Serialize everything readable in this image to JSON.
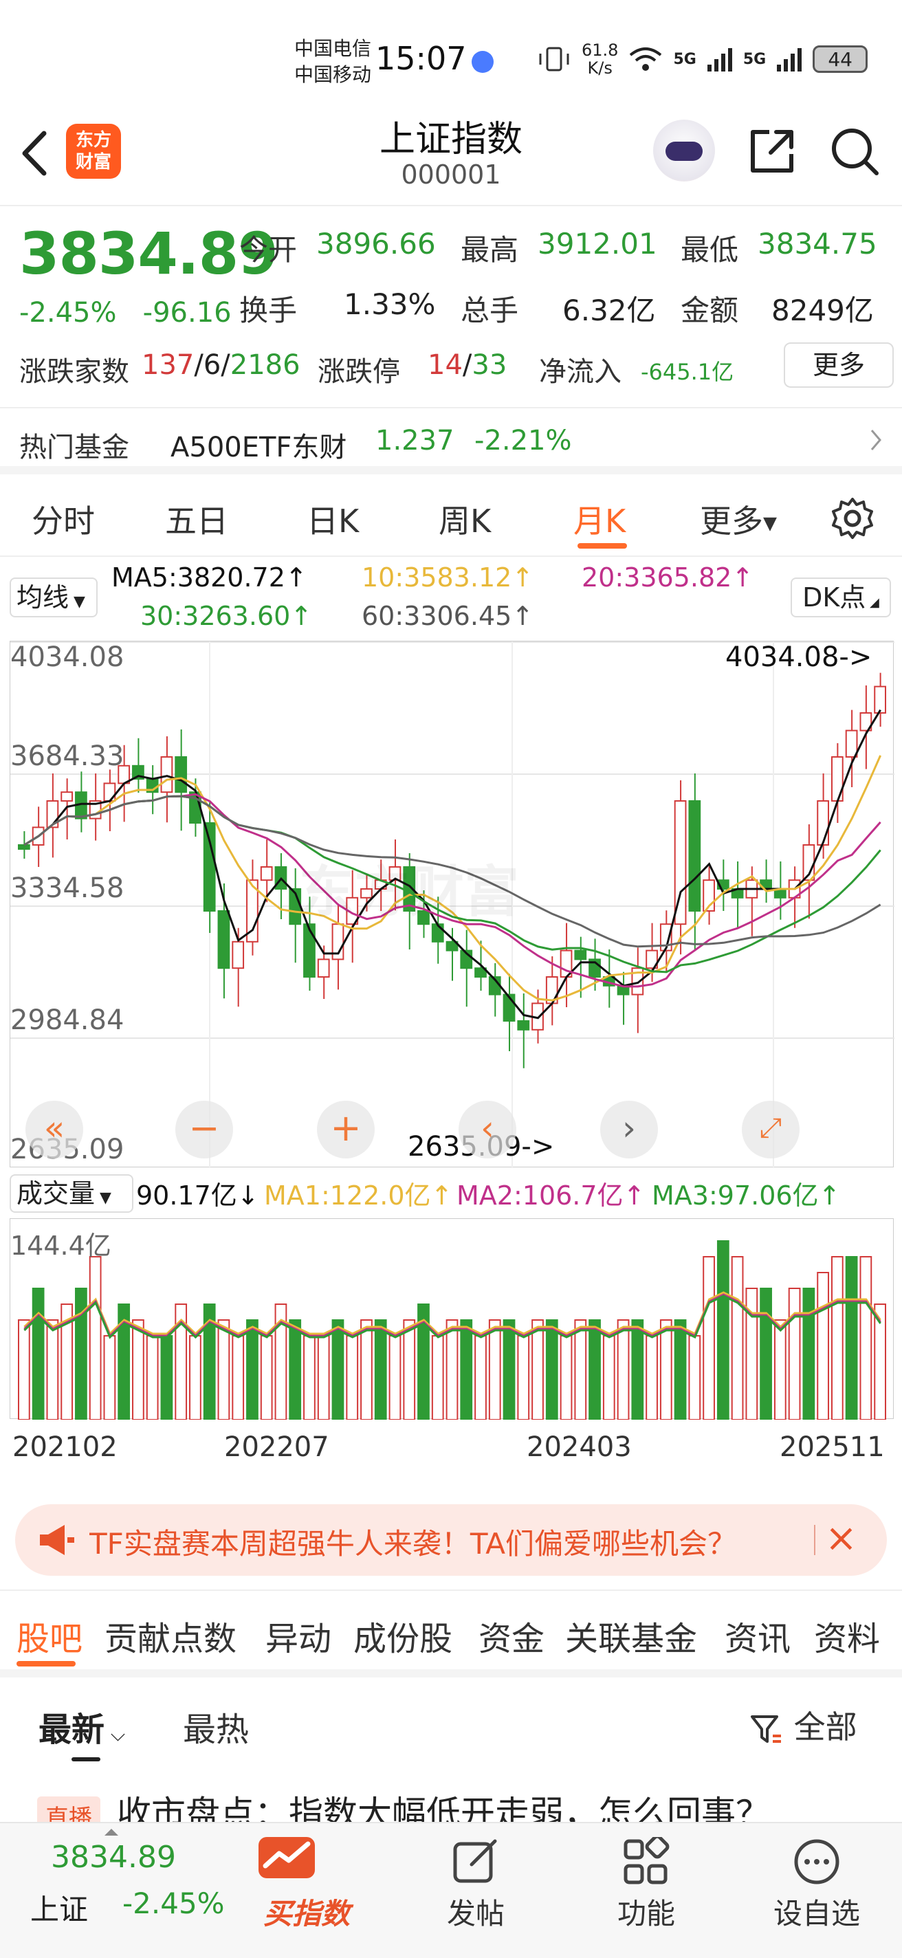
{
  "status": {
    "carrier1": "中国电信",
    "carrier2": "中国移动",
    "time": "15:07",
    "speed_top": "61.8",
    "speed_unit": "K/s",
    "net1": "5G",
    "net2": "5G",
    "battery": "44"
  },
  "header": {
    "logo_line1": "东方",
    "logo_line2": "财富",
    "title": "上证指数",
    "code": "000001"
  },
  "quote": {
    "price": "3834.89",
    "change_pct": "-2.45%",
    "change_abs": "-96.16",
    "open_label": "今开",
    "open": "3896.66",
    "high_label": "最高",
    "high": "3912.01",
    "low_label": "最低",
    "low": "3834.75",
    "turnover_label": "换手",
    "turnover": "1.33%",
    "volume_label": "总手",
    "volume": "6.32亿",
    "amount_label": "金额",
    "amount": "8249亿",
    "updown_label": "涨跌家数",
    "up_count": "137",
    "flat_count": "6",
    "down_count": "2186",
    "limit_label": "涨跌停",
    "limit_up": "14",
    "limit_down": "33",
    "netflow_label": "净流入",
    "netflow": "-645.1亿",
    "more": "更多"
  },
  "fund": {
    "label": "热门基金",
    "name": "A500ETF东财",
    "price": "1.237",
    "change": "-2.21%"
  },
  "tabs": [
    "分时",
    "五日",
    "日K",
    "周K",
    "月K",
    "更多"
  ],
  "ma": {
    "selector": "均线",
    "ma5": "MA5:3820.72↑",
    "ma10": "10:3583.12↑",
    "ma20": "20:3365.82↑",
    "ma30": "30:3263.60↑",
    "ma60": "60:3306.45↑",
    "dk": "DK点"
  },
  "chart": {
    "y_labels": [
      "4034.08",
      "3684.33",
      "3334.58",
      "2984.84",
      "2635.09"
    ],
    "max_marker": "4034.08->",
    "min_marker": "2635.09->",
    "watermark": "东方财富"
  },
  "volume": {
    "selector": "成交量",
    "current": "90.17亿↓",
    "ma1": "MA1:122.0亿↑",
    "ma2": "MA2:106.7亿↑",
    "ma3": "MA3:97.06亿↑",
    "y_max": "144.4亿"
  },
  "x_dates": [
    "202102",
    "202207",
    "202403",
    "202511"
  ],
  "ad": {
    "text": "TF实盘赛本周超强牛人来袭！TA们偏爱哪些机会？"
  },
  "subtabs": [
    "股吧",
    "贡献点数",
    "异动",
    "成份股",
    "资金",
    "关联基金",
    "资讯",
    "资料"
  ],
  "sort": {
    "latest": "最新",
    "hot": "最热",
    "filter": "全部"
  },
  "news": {
    "badge": "直播",
    "title": "收市盘点：指数大幅低开走弱，怎么回事？"
  },
  "nav": {
    "mini_price": "3834.89",
    "mini_name": "上证",
    "mini_change": "-2.45%",
    "buy_index": "买指数",
    "post": "发帖",
    "function": "功能",
    "watchlist": "设自选"
  },
  "colors": {
    "up": "#d23a3a",
    "down": "#2e9b35",
    "accent": "#ff6a2a",
    "ma5": "#111111",
    "ma10": "#e8b83a",
    "ma20": "#c0308a",
    "ma30": "#2e9b35",
    "ma60": "#666666"
  }
}
